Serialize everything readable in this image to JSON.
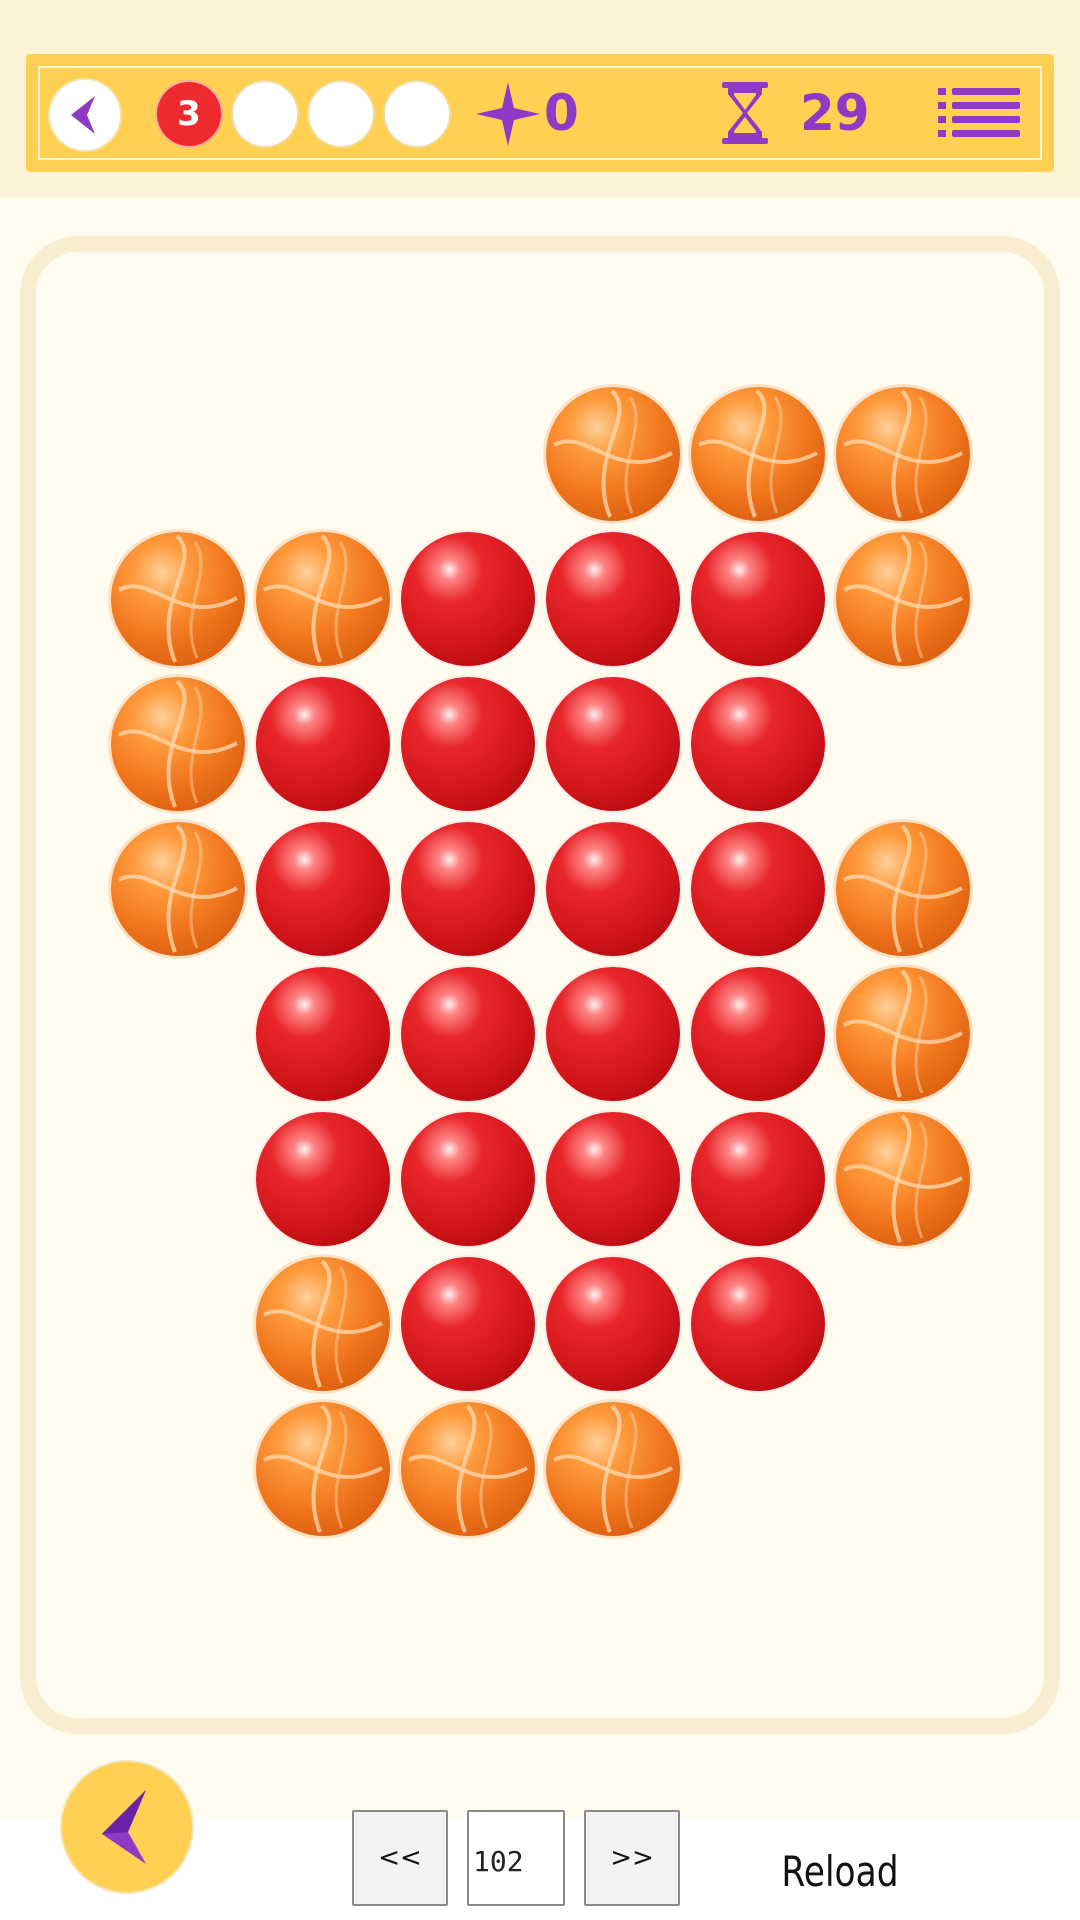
{
  "header": {
    "lives_remaining": "3",
    "lives_total": 4,
    "stars_count": "0",
    "timer_value": "29"
  },
  "icons": {
    "back": "chevron-left-icon",
    "star": "four-point-star-icon",
    "timer": "hourglass-icon",
    "menu": "list-menu-icon"
  },
  "colors": {
    "header_bg": "#ffd052",
    "accent_purple": "#8f39c7",
    "life_active": "#ef2a2e",
    "board_border": "#f8edd1",
    "background": "#fffbef"
  },
  "board": {
    "rows": 8,
    "cols": 6,
    "grid": [
      [
        "",
        "",
        "",
        "orange",
        "orange",
        "orange"
      ],
      [
        "orange",
        "orange",
        "red",
        "red",
        "red",
        "orange"
      ],
      [
        "orange",
        "red",
        "red",
        "red",
        "red",
        ""
      ],
      [
        "orange",
        "red",
        "red",
        "red",
        "red",
        "orange"
      ],
      [
        "",
        "red",
        "red",
        "red",
        "red",
        "orange"
      ],
      [
        "",
        "red",
        "red",
        "red",
        "red",
        "orange"
      ],
      [
        "",
        "orange",
        "red",
        "red",
        "red",
        ""
      ],
      [
        "",
        "orange",
        "orange",
        "orange",
        "",
        ""
      ]
    ]
  },
  "controls": {
    "prev_label": "<<",
    "level_value": "102",
    "next_label": ">>",
    "reload_label": "Reload"
  }
}
